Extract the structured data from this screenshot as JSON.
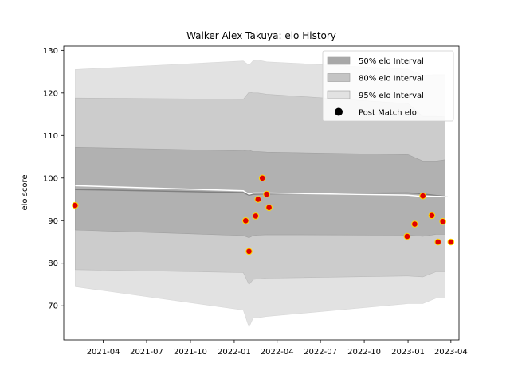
{
  "chart_data": {
    "type": "line",
    "title": "Walker Alex Takuya: elo History",
    "xlabel": "",
    "ylabel": "elo score",
    "x_ticks": [
      "2021-04",
      "2021-07",
      "2021-10",
      "2022-01",
      "2022-04",
      "2022-07",
      "2022-10",
      "2023-01",
      "2023-04"
    ],
    "y_ticks": [
      "70",
      "80",
      "90",
      "100",
      "110",
      "120",
      "130"
    ],
    "ylim": [
      62,
      131
    ],
    "xlim": [
      "2021-01-08",
      "2023-04-18"
    ],
    "legend_position": "top-right",
    "legend": [
      {
        "label": "50% elo Interval",
        "kind": "band",
        "color": "#a8a8a8"
      },
      {
        "label": "80% elo Interval",
        "kind": "band",
        "color": "#c4c4c4"
      },
      {
        "label": "95% elo Interval",
        "kind": "band",
        "color": "#e2e2e2"
      },
      {
        "label": "Post Match elo",
        "kind": "marker",
        "color": "#000000"
      }
    ],
    "dates": [
      "2021-02-01",
      "2022-01-20",
      "2022-02-01",
      "2022-02-10",
      "2022-02-20",
      "2022-03-10",
      "2023-01-01",
      "2023-02-01",
      "2023-03-01",
      "2023-03-20"
    ],
    "bands": {
      "p95": {
        "low": [
          74.5,
          69,
          65,
          67.2,
          67.2,
          67.5,
          70.5,
          70.5,
          71.8,
          71.8
        ],
        "high": [
          125.5,
          127.5,
          126.5,
          127.6,
          127.7,
          127.3,
          125.6,
          124.2,
          124.3,
          124.3
        ]
      },
      "p80": {
        "low": [
          78.5,
          77.8,
          75,
          76.2,
          76.3,
          76.5,
          77,
          76.8,
          78,
          78
        ],
        "high": [
          118.8,
          118.5,
          120.2,
          120,
          120,
          119.7,
          117.5,
          114.5,
          114.5,
          114.4
        ]
      },
      "p50": {
        "low": [
          87.8,
          86.5,
          86,
          86.5,
          86.6,
          86.7,
          86.6,
          86.3,
          86.8,
          86.8
        ],
        "high": [
          107.2,
          106.4,
          106.6,
          106.2,
          106.2,
          106.1,
          105.5,
          104,
          104,
          104.3
        ]
      }
    },
    "series": [
      {
        "name": "",
        "color": "#808080",
        "x": [
          "2021-02-01",
          "2022-01-20",
          "2022-02-01",
          "2022-02-10",
          "2022-03-10",
          "2023-01-01",
          "2023-01-20",
          "2023-03-10",
          "2023-03-25"
        ],
        "y": [
          97.3,
          96.6,
          96,
          96.2,
          96.3,
          96.5,
          96.4,
          95.8,
          95.6
        ]
      },
      {
        "name": "",
        "color": "#ffffff",
        "x": [
          "2021-02-01",
          "2022-01-20",
          "2022-02-01",
          "2022-02-10",
          "2022-03-10",
          "2023-01-01",
          "2023-01-20",
          "2023-03-10",
          "2023-03-25"
        ],
        "y": [
          98.2,
          97,
          96.2,
          96.5,
          96.5,
          96,
          95.8,
          95.7,
          95.6
        ]
      }
    ],
    "points": {
      "name": "Post Match elo",
      "fill": "#e00000",
      "edge": "#ffd700",
      "x": [
        "2021-02-01",
        "2022-01-25",
        "2022-02-01",
        "2022-02-15",
        "2022-02-20",
        "2022-03-01",
        "2022-03-10",
        "2022-03-15",
        "2022-12-30",
        "2023-01-15",
        "2023-02-01",
        "2023-02-20",
        "2023-03-05",
        "2023-03-15",
        "2023-04-01"
      ],
      "y": [
        93.6,
        90,
        82.8,
        91.1,
        95,
        100,
        96.2,
        93.1,
        86.3,
        89.2,
        95.8,
        91.2,
        85,
        89.8,
        85
      ]
    }
  }
}
